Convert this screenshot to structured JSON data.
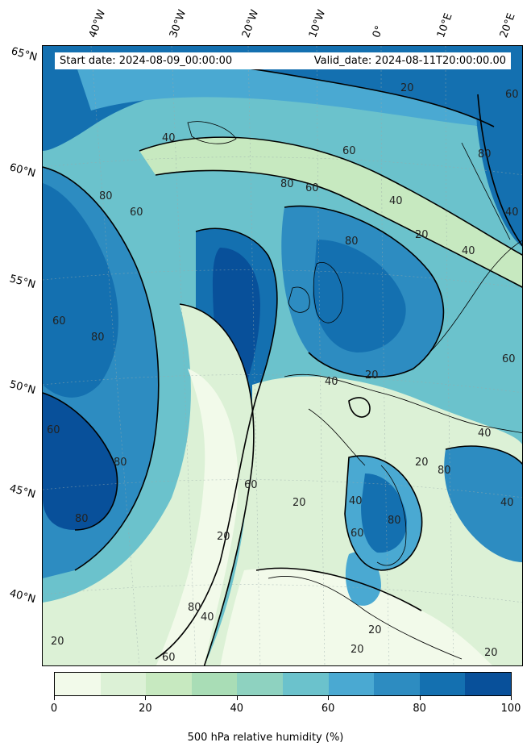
{
  "header": {
    "start_date": "Start date: 2024-08-09_00:00:00",
    "valid_date": "Valid_date: 2024-08-11T20:00:00.00"
  },
  "longitude_labels": [
    "40°W",
    "30°W",
    "20°W",
    "10°W",
    "0°",
    "10°E",
    "20°E"
  ],
  "latitude_labels": [
    "65°N",
    "60°N",
    "55°N",
    "50°N",
    "45°N",
    "40°N"
  ],
  "contour_labels": [
    "20",
    "40",
    "60",
    "80"
  ],
  "colorbar": {
    "label": "500 hPa relative humidity (%)",
    "ticks": [
      "0",
      "20",
      "40",
      "60",
      "80",
      "100"
    ],
    "colors": [
      "#f2faea",
      "#dcf1d6",
      "#c7e9c0",
      "#a9ddb6",
      "#8ed2c0",
      "#6bc2cc",
      "#4aa9d2",
      "#2d8cc1",
      "#1470b0",
      "#08509a"
    ]
  }
}
